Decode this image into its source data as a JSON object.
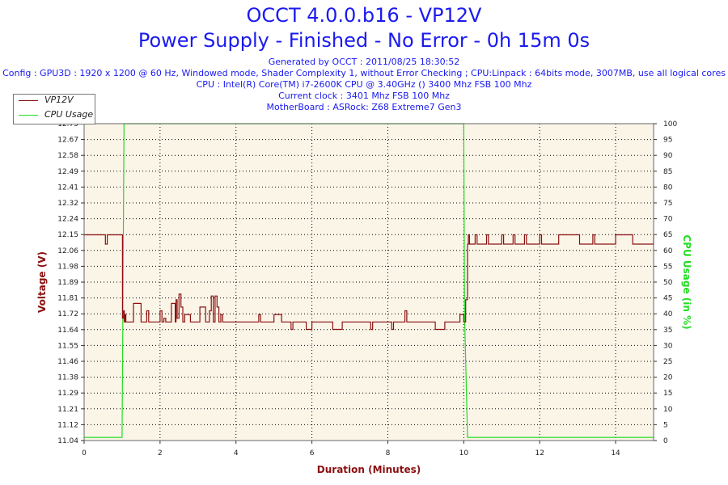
{
  "header": {
    "title": "OCCT 4.0.0.b16 - VP12V",
    "subtitle": "Power Supply - Finished - No Error - 0h 15m 0s",
    "info_lines": [
      "Generated by OCCT : 2011/08/25 18:30:52",
      "Config : GPU3D : 1920 x 1200 @ 60 Hz, Windowed mode, Shader Complexity 1, without Error Checking ; CPU:Linpack : 64bits mode, 3007MB, use all logical cores",
      "CPU : Intel(R) Core(TM) i7-2600K CPU @ 3.40GHz () 3400 Mhz FSB 100 Mhz",
      "Current clock : 3401 Mhz FSB 100 Mhz",
      "MotherBoard : ASRock: Z68 Extreme7 Gen3"
    ]
  },
  "colors": {
    "title": "#1a1af0",
    "voltage": "#8b1010",
    "cpu": "#22dd22",
    "plot_bg": "#fbf5e8",
    "grid": "#000000"
  },
  "chart_data": {
    "type": "line",
    "xlabel": "Duration (Minutes)",
    "ylabel": "Voltage (V)",
    "y2label": "CPU Usage (in %)",
    "xlim": [
      0,
      15
    ],
    "ylim": [
      11.04,
      12.75
    ],
    "y2lim": [
      0,
      100
    ],
    "x_ticks": [
      "0",
      "2",
      "4",
      "6",
      "8",
      "10",
      "12",
      "14"
    ],
    "y_ticks": [
      "12.75",
      "12.67",
      "12.58",
      "12.49",
      "12.41",
      "12.32",
      "12.24",
      "12.15",
      "12.06",
      "11.98",
      "11.89",
      "11.81",
      "11.72",
      "11.64",
      "11.55",
      "11.46",
      "11.38",
      "11.29",
      "11.21",
      "11.12",
      "11.04"
    ],
    "y2_ticks": [
      "100",
      "95",
      "90",
      "85",
      "80",
      "75",
      "70",
      "65",
      "60",
      "55",
      "50",
      "45",
      "40",
      "35",
      "30",
      "25",
      "20",
      "15",
      "10",
      "5",
      "0"
    ],
    "grid": true,
    "legend_position": "top-left",
    "series": [
      {
        "name": "VP12V",
        "axis": "left",
        "x": [
          0,
          0.55,
          0.56,
          0.6,
          0.61,
          1.0,
          1.01,
          1.04,
          1.06,
          1.08,
          1.1,
          1.2,
          1.3,
          1.5,
          1.6,
          1.65,
          1.7,
          1.95,
          2.0,
          2.05,
          2.1,
          2.15,
          2.3,
          2.4,
          2.42,
          2.45,
          2.5,
          2.55,
          2.6,
          2.65,
          2.8,
          3.0,
          3.05,
          3.2,
          3.3,
          3.35,
          3.4,
          3.45,
          3.5,
          3.55,
          3.6,
          3.65,
          3.8,
          4.0,
          4.5,
          4.6,
          4.65,
          4.9,
          5.0,
          5.2,
          5.4,
          5.45,
          5.5,
          5.8,
          5.85,
          6.0,
          6.2,
          6.5,
          6.55,
          6.8,
          7.0,
          7.5,
          7.55,
          7.6,
          7.9,
          8.0,
          8.1,
          8.15,
          8.2,
          8.4,
          8.45,
          8.5,
          8.6,
          8.8,
          9.0,
          9.2,
          9.25,
          9.5,
          9.6,
          9.8,
          9.9,
          10.0,
          10.05,
          10.1,
          10.12,
          10.15,
          10.3,
          10.35,
          10.6,
          10.65,
          11.0,
          11.05,
          11.3,
          11.35,
          11.6,
          11.65,
          12.0,
          12.05,
          12.5,
          12.55,
          13.0,
          13.05,
          13.4,
          13.45,
          14.0,
          14.05,
          14.4,
          14.45,
          15.0
        ],
        "y": [
          12.15,
          12.15,
          12.1,
          12.1,
          12.15,
          12.15,
          11.7,
          11.74,
          11.68,
          11.72,
          11.68,
          11.68,
          11.78,
          11.68,
          11.68,
          11.74,
          11.68,
          11.68,
          11.74,
          11.68,
          11.7,
          11.68,
          11.78,
          11.68,
          11.8,
          11.7,
          11.83,
          11.76,
          11.68,
          11.72,
          11.68,
          11.68,
          11.76,
          11.68,
          11.74,
          11.82,
          11.68,
          11.82,
          11.76,
          11.68,
          11.72,
          11.68,
          11.68,
          11.68,
          11.68,
          11.72,
          11.68,
          11.68,
          11.72,
          11.68,
          11.68,
          11.64,
          11.68,
          11.68,
          11.64,
          11.68,
          11.68,
          11.68,
          11.64,
          11.68,
          11.68,
          11.68,
          11.64,
          11.68,
          11.68,
          11.68,
          11.64,
          11.68,
          11.68,
          11.68,
          11.74,
          11.68,
          11.68,
          11.68,
          11.68,
          11.68,
          11.64,
          11.68,
          11.68,
          11.68,
          11.72,
          11.68,
          11.8,
          12.1,
          12.15,
          12.1,
          12.15,
          12.1,
          12.15,
          12.1,
          12.15,
          12.1,
          12.15,
          12.1,
          12.15,
          12.1,
          12.15,
          12.1,
          12.15,
          12.15,
          12.15,
          12.1,
          12.15,
          12.1,
          12.15,
          12.15,
          12.15,
          12.1,
          12.15
        ]
      },
      {
        "name": "CPU Usage",
        "axis": "right",
        "x": [
          0,
          0.5,
          1.0,
          1.02,
          1.05,
          10.0,
          10.02,
          10.1,
          12.0,
          15.0
        ],
        "y": [
          1,
          1,
          1,
          40,
          100,
          100,
          40,
          1,
          1,
          1
        ]
      }
    ]
  }
}
